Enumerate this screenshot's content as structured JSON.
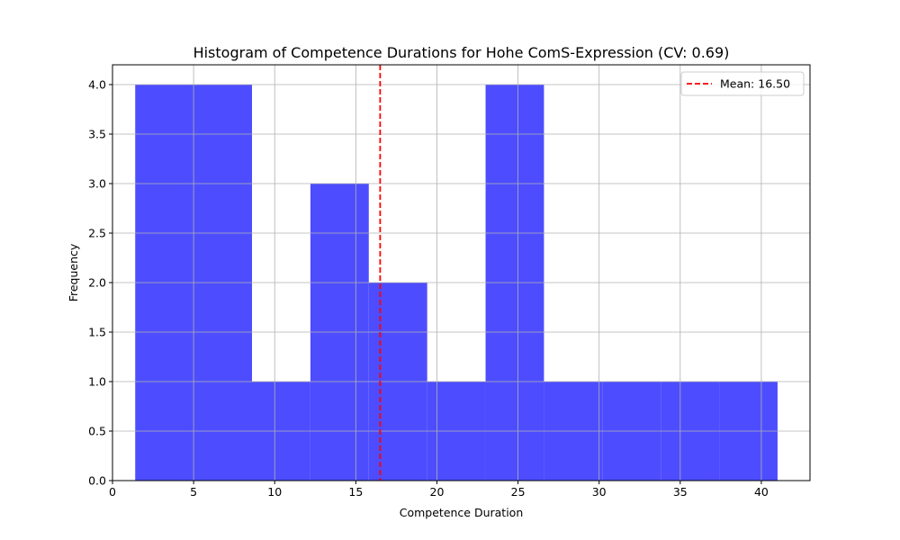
{
  "chart_data": {
    "type": "histogram",
    "title": "Histogram of Competence Durations for Hohe ComS-Expression (CV: 0.69)",
    "xlabel": "Competence Duration",
    "ylabel": "Frequency",
    "xlim": [
      0,
      43
    ],
    "ylim": [
      0,
      4.2
    ],
    "xticks": [
      0,
      5,
      10,
      15,
      20,
      25,
      30,
      35,
      40
    ],
    "xtick_labels": [
      "0",
      "5",
      "10",
      "15",
      "20",
      "25",
      "30",
      "35",
      "40"
    ],
    "yticks": [
      0,
      0.5,
      1.0,
      1.5,
      2.0,
      2.5,
      3.0,
      3.5,
      4.0
    ],
    "ytick_labels": [
      "0.0",
      "0.5",
      "1.0",
      "1.5",
      "2.0",
      "2.5",
      "3.0",
      "3.5",
      "4.0"
    ],
    "grid": true,
    "bar_color": "#4d4dff",
    "bins": [
      {
        "start": 1.4,
        "end": 5.0,
        "count": 4
      },
      {
        "start": 5.0,
        "end": 8.6,
        "count": 4
      },
      {
        "start": 8.6,
        "end": 12.2,
        "count": 1
      },
      {
        "start": 12.2,
        "end": 15.8,
        "count": 3
      },
      {
        "start": 15.8,
        "end": 19.4,
        "count": 2
      },
      {
        "start": 19.4,
        "end": 23.0,
        "count": 1
      },
      {
        "start": 23.0,
        "end": 26.6,
        "count": 4
      },
      {
        "start": 26.6,
        "end": 30.2,
        "count": 1
      },
      {
        "start": 30.2,
        "end": 33.8,
        "count": 1
      },
      {
        "start": 33.8,
        "end": 37.4,
        "count": 1
      },
      {
        "start": 37.4,
        "end": 41.0,
        "count": 1
      }
    ],
    "mean_line": {
      "value": 16.5,
      "color": "#ff0000",
      "style": "dashed",
      "label": "Mean: 16.50"
    },
    "legend": {
      "placement": "top-right",
      "entries": [
        "Mean: 16.50"
      ]
    }
  }
}
